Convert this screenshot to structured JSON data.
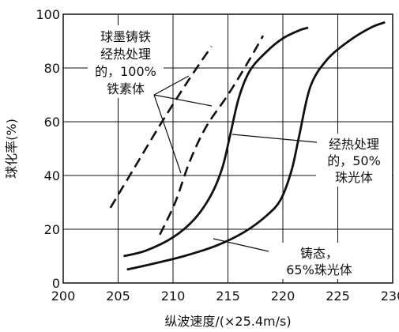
{
  "chart_data": {
    "type": "line",
    "xlabel": "纵波速度/(×25.4m/s)",
    "ylabel": "球化率(%)",
    "xlim": [
      200,
      230
    ],
    "ylim": [
      0,
      100
    ],
    "x_ticks": [
      "200",
      "205",
      "210",
      "215",
      "220",
      "225",
      "230"
    ],
    "y_ticks": [
      "0",
      "20",
      "40",
      "60",
      "80",
      "100"
    ],
    "grid": true,
    "series": [
      {
        "style": "dashed",
        "x": [
          204.3,
          206.5,
          209.0,
          211.5,
          213.5
        ],
        "y": [
          28,
          43,
          60,
          76,
          88
        ]
      },
      {
        "style": "dashed",
        "x": [
          208.8,
          210.2,
          211.5,
          213.0,
          215.0,
          216.8,
          218.2
        ],
        "y": [
          18,
          30,
          45,
          58,
          70,
          82,
          92
        ]
      },
      {
        "style": "solid",
        "x": [
          205.5,
          207.5,
          210.0,
          212.0,
          213.5,
          214.5,
          215.2,
          216.0,
          217.0,
          218.5,
          220.0,
          221.5,
          222.3
        ],
        "y": [
          10,
          12,
          17,
          24,
          33,
          43,
          55,
          69,
          79,
          86,
          91,
          94,
          95
        ]
      },
      {
        "style": "solid",
        "x": [
          205.8,
          208.0,
          211.0,
          214.0,
          216.5,
          218.5,
          219.8,
          220.8,
          221.5,
          222.5,
          224.0,
          226.0,
          228.0,
          229.3
        ],
        "y": [
          5,
          7,
          10,
          14,
          19,
          25,
          31,
          42,
          55,
          73,
          83,
          90,
          95,
          97
        ]
      }
    ],
    "annotations": [
      {
        "lines": [
          "球墨铸铁",
          "经热处理",
          "的，100%",
          "铁素体"
        ]
      },
      {
        "lines": [
          "经热处理",
          "的，50%",
          "珠光体"
        ]
      },
      {
        "lines": [
          "铸态，",
          "65%珠光体"
        ]
      }
    ]
  }
}
